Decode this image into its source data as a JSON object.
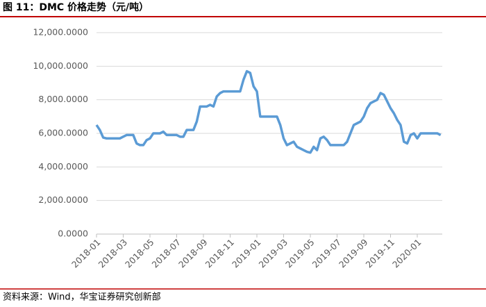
{
  "chart_data": {
    "type": "line",
    "title": "图 11：DMC 价格走势（元/吨）",
    "source": "资料来源：Wind，华宝证券研究创新部",
    "categories": [
      "2018-01",
      null,
      null,
      null,
      null,
      null,
      null,
      null,
      "2018-03",
      null,
      null,
      null,
      null,
      null,
      null,
      null,
      "2018-05",
      null,
      null,
      null,
      null,
      null,
      null,
      null,
      "2018-07",
      null,
      null,
      null,
      null,
      null,
      null,
      null,
      "2018-09",
      null,
      null,
      null,
      null,
      null,
      null,
      null,
      "2018-11",
      null,
      null,
      null,
      null,
      null,
      null,
      null,
      "2019-01",
      null,
      null,
      null,
      null,
      null,
      null,
      null,
      "2019-03",
      null,
      null,
      null,
      null,
      null,
      null,
      null,
      "2019-05",
      null,
      null,
      null,
      null,
      null,
      null,
      null,
      "2019-07",
      null,
      null,
      null,
      null,
      null,
      null,
      null,
      "2019-09",
      null,
      null,
      null,
      null,
      null,
      null,
      null,
      "2019-11",
      null,
      null,
      null,
      null,
      null,
      null,
      null,
      "2020-01",
      null,
      null,
      null,
      null,
      null,
      null,
      null
    ],
    "series": [
      {
        "name": "DMC",
        "color": "#5b9bd5",
        "values": [
          6500,
          6200,
          5750,
          5700,
          5700,
          5700,
          5700,
          5700,
          5800,
          5900,
          5900,
          5900,
          5400,
          5300,
          5300,
          5600,
          5700,
          6000,
          6000,
          6000,
          6100,
          5900,
          5900,
          5900,
          5900,
          5800,
          5800,
          6200,
          6200,
          6200,
          6700,
          7600,
          7600,
          7600,
          7700,
          7600,
          8200,
          8400,
          8500,
          8500,
          8500,
          8500,
          8500,
          8500,
          9200,
          9700,
          9600,
          8800,
          8500,
          7000,
          7000,
          7000,
          7000,
          7000,
          7000,
          6500,
          5700,
          5300,
          5400,
          5500,
          5200,
          5100,
          5000,
          4900,
          4850,
          5200,
          5000,
          5700,
          5800,
          5600,
          5300,
          5300,
          5300,
          5300,
          5300,
          5500,
          6000,
          6500,
          6600,
          6700,
          7000,
          7500,
          7800,
          7900,
          8000,
          8400,
          8300,
          7900,
          7500,
          7200,
          6800,
          6500,
          5500,
          5400,
          5900,
          6000,
          5700,
          6000,
          6000,
          6000,
          6000,
          6000,
          6000,
          5900
        ]
      }
    ],
    "ylim": [
      0,
      12000
    ],
    "yticks": [
      {
        "value": 0,
        "label": "0.0000"
      },
      {
        "value": 2000,
        "label": "2,000.0000"
      },
      {
        "value": 4000,
        "label": "4,000.0000"
      },
      {
        "value": 6000,
        "label": "6,000.0000"
      },
      {
        "value": 8000,
        "label": "8,000.0000"
      },
      {
        "value": 10000,
        "label": "10,000.0000"
      },
      {
        "value": 12000,
        "label": "12,000.0000"
      }
    ],
    "grid": true
  }
}
